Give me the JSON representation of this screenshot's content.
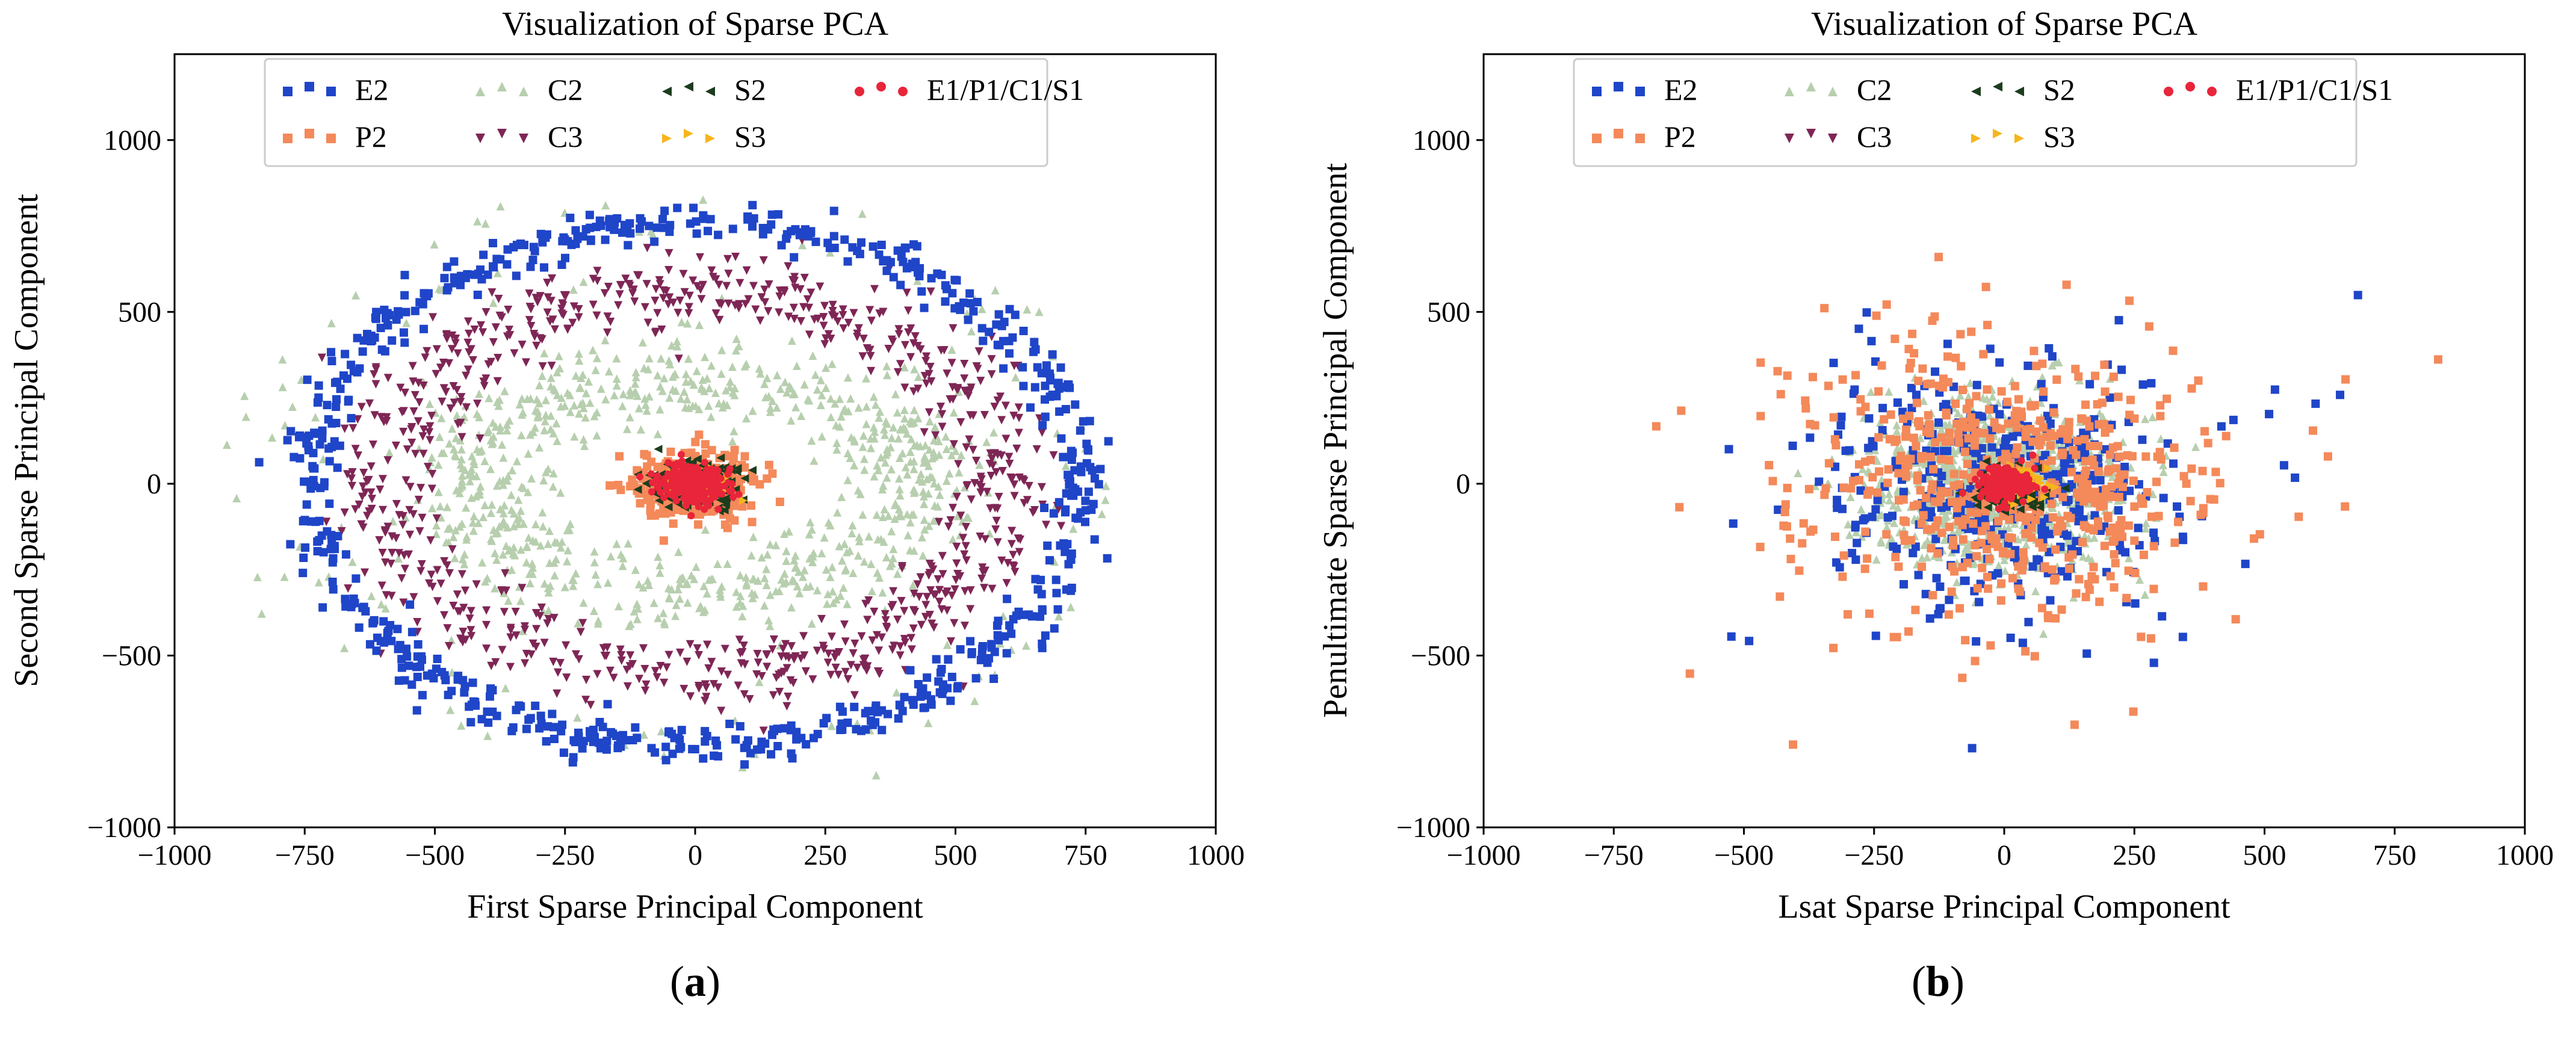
{
  "chart_data": [
    {
      "type": "scatter",
      "panel_label": "a",
      "title": "Visualization of Sparse PCA",
      "xlabel": "First Sparse Principal Component",
      "ylabel": "Second Sparse Principal Component",
      "xlim": [
        -1000,
        1000
      ],
      "ylim": [
        -1000,
        1250
      ],
      "xticks": [
        "−1000",
        "−750",
        "−500",
        "−250",
        "0",
        "250",
        "500",
        "750",
        "1000"
      ],
      "xtick_values": [
        -1000,
        -750,
        -500,
        -250,
        0,
        250,
        500,
        750,
        1000
      ],
      "yticks": [
        "−1000",
        "−500",
        "0",
        "500",
        "1000"
      ],
      "ytick_values": [
        -1000,
        -500,
        0,
        500,
        1000
      ],
      "legend_position": "top-center",
      "series": [
        {
          "name": "E2",
          "marker": "square",
          "color": "#1f45c8",
          "distribution": "ring",
          "rx": 740,
          "ry": 760,
          "spread": 28,
          "count": 700
        },
        {
          "name": "C2",
          "marker": "triangle-up",
          "color": "#b7cfae",
          "distribution": "ring-and-inner-ring",
          "rx": 440,
          "ry": 310,
          "spread": 70,
          "count": 900
        },
        {
          "name": "S2",
          "marker": "triangle-left",
          "color": "#1b3d1e",
          "distribution": "cluster",
          "cx": 0,
          "cy": 0,
          "sx": 40,
          "sy": 30,
          "count": 250
        },
        {
          "name": "E1/P1/C1/S1",
          "marker": "circle",
          "color": "#e8253a",
          "distribution": "cluster",
          "cx": 0,
          "cy": 0,
          "sx": 30,
          "sy": 30,
          "count": 250
        },
        {
          "name": "P2",
          "marker": "square",
          "color": "#f4895a",
          "distribution": "cluster",
          "cx": 0,
          "cy": 0,
          "sx": 60,
          "sy": 50,
          "count": 350
        },
        {
          "name": "C3",
          "marker": "triangle-down",
          "color": "#7e2655",
          "distribution": "ring",
          "rx": 600,
          "ry": 560,
          "spread": 60,
          "count": 800
        },
        {
          "name": "S3",
          "marker": "triangle-right",
          "color": "#f7b51c",
          "distribution": "cluster",
          "cx": 0,
          "cy": 0,
          "sx": 25,
          "sy": 20,
          "count": 120
        }
      ]
    },
    {
      "type": "scatter",
      "panel_label": "b",
      "title": "Visualization of Sparse PCA",
      "xlabel": "Lsat Sparse Principal Component",
      "ylabel": "Penultimate Sparse Principal Component",
      "xlim": [
        -1000,
        1000
      ],
      "ylim": [
        -1000,
        1250
      ],
      "xticks": [
        "−1000",
        "−750",
        "−500",
        "−250",
        "0",
        "250",
        "500",
        "750",
        "1000"
      ],
      "xtick_values": [
        -1000,
        -750,
        -500,
        -250,
        0,
        250,
        500,
        750,
        1000
      ],
      "yticks": [
        "−1000",
        "−500",
        "0",
        "500",
        "1000"
      ],
      "ytick_values": [
        -1000,
        -500,
        0,
        500,
        1000
      ],
      "legend_position": "top-center",
      "series": [
        {
          "name": "E2",
          "marker": "square",
          "color": "#1f45c8",
          "distribution": "cluster",
          "cx": 0,
          "cy": 0,
          "sx": 170,
          "sy": 170,
          "count": 400
        },
        {
          "name": "C2",
          "marker": "triangle-up",
          "color": "#b7cfae",
          "distribution": "cluster",
          "cx": -20,
          "cy": 0,
          "sx": 120,
          "sy": 120,
          "count": 900
        },
        {
          "name": "S2",
          "marker": "triangle-left",
          "color": "#1b3d1e",
          "distribution": "cluster",
          "cx": 10,
          "cy": -10,
          "sx": 30,
          "sy": 30,
          "count": 150
        },
        {
          "name": "E1/P1/C1/S1",
          "marker": "circle",
          "color": "#e8253a",
          "distribution": "cluster",
          "cx": 0,
          "cy": 0,
          "sx": 25,
          "sy": 25,
          "count": 200
        },
        {
          "name": "P2",
          "marker": "square",
          "color": "#f4895a",
          "distribution": "cluster",
          "cx": 0,
          "cy": 0,
          "sx": 180,
          "sy": 190,
          "count": 600
        },
        {
          "name": "C3",
          "marker": "triangle-down",
          "color": "#7e2655",
          "distribution": "cluster",
          "cx": 0,
          "cy": 0,
          "sx": 20,
          "sy": 20,
          "count": 30
        },
        {
          "name": "S3",
          "marker": "triangle-right",
          "color": "#f7b51c",
          "distribution": "cluster",
          "cx": 30,
          "cy": 10,
          "sx": 25,
          "sy": 25,
          "count": 60
        }
      ]
    }
  ],
  "legend_order": [
    "E2",
    "C2",
    "S2",
    "E1/P1/C1/S1",
    "P2",
    "C3",
    "S3"
  ]
}
